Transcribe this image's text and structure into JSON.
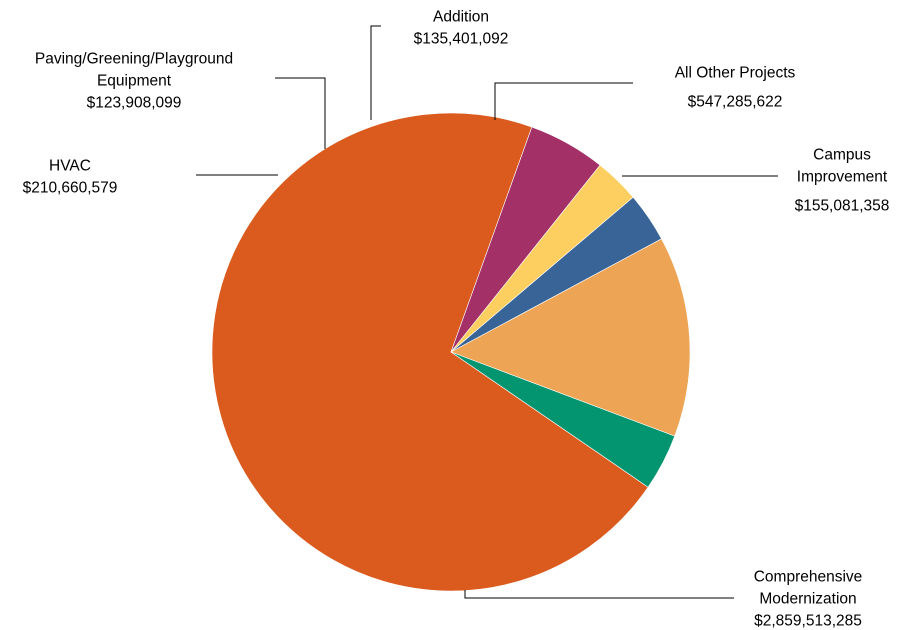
{
  "chart_data": {
    "type": "pie",
    "title": "",
    "series": [
      {
        "slices": [
          {
            "label_lines": [
              "Comprehensive",
              "Modernization"
            ],
            "amount": "$2,859,513,285",
            "value": 2859513285,
            "color": "#DB5A1E"
          },
          {
            "label_lines": [
              "HVAC"
            ],
            "amount": "$210,660,579",
            "value": 210660579,
            "color": "#A33066"
          },
          {
            "label_lines": [
              "Paving/Greening/Playground",
              "Equipment"
            ],
            "amount": "$123,908,099",
            "value": 123908099,
            "color": "#FDCF61"
          },
          {
            "label_lines": [
              "Addition"
            ],
            "amount": "$135,401,092",
            "value": 135401092,
            "color": "#386497"
          },
          {
            "label_lines": [
              "All Other Projects"
            ],
            "amount": "$547,285,622",
            "value": 547285622,
            "color": "#EDA454"
          },
          {
            "label_lines": [
              "Campus",
              "Improvement"
            ],
            "amount": "$155,081,358",
            "value": 155081358,
            "color": "#039570"
          }
        ]
      }
    ],
    "legend": "none",
    "labels": "outside-with-leader-lines"
  }
}
